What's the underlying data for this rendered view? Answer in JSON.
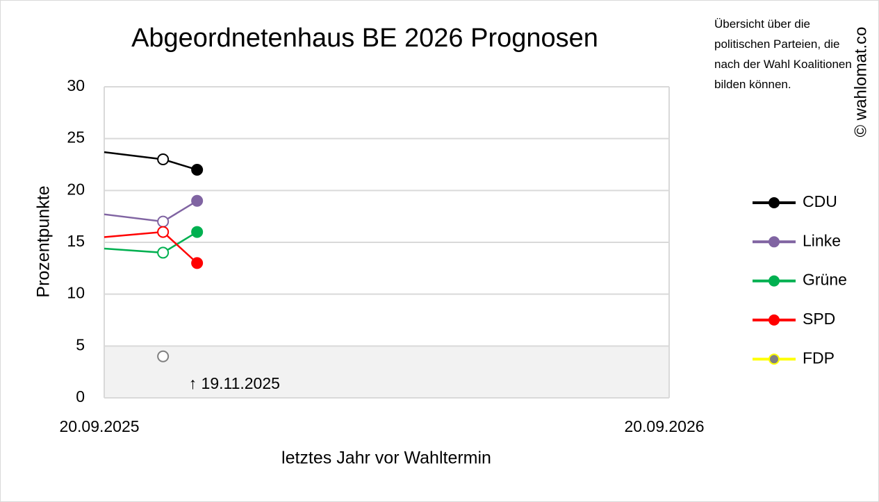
{
  "chart_data": {
    "type": "line",
    "title": "Abgeordnetenhaus BE 2026 Prognosen",
    "x_label": "letztes Jahr vor Wahltermin",
    "y_label": "Prozentpunkte",
    "note": "Übersicht über die politischen Parteien, die nach der Wahl Koalitionen bilden können.",
    "credit": "© wahlomat.co",
    "annotation": "↑ 19.11.2025",
    "x": [
      "20.09.2025",
      "28.10.2025",
      "19.11.2025"
    ],
    "markers": [
      "none",
      "open",
      "filled"
    ],
    "xlim": [
      "20.09.2025",
      "20.09.2026"
    ],
    "xticks": [
      "20.09.2025",
      "20.09.2026"
    ],
    "ylim": [
      0,
      30
    ],
    "yticks": [
      0,
      5,
      10,
      15,
      20,
      25,
      30
    ],
    "shaded_band": [
      0,
      5
    ],
    "grid": true,
    "legend": "right",
    "series": [
      {
        "name": "CDU",
        "color": "#000000",
        "values": [
          23.7,
          23,
          22
        ]
      },
      {
        "name": "Linke",
        "color": "#8064a2",
        "values": [
          17.7,
          17,
          19
        ]
      },
      {
        "name": "Grüne",
        "color": "#00b050",
        "values": [
          14.4,
          14,
          16
        ]
      },
      {
        "name": "SPD",
        "color": "#ff0000",
        "values": [
          15.5,
          16,
          13
        ]
      },
      {
        "name": "FDP",
        "color": "#ffff00",
        "marker_color": "#808080",
        "values": [
          null,
          4,
          null
        ]
      }
    ]
  }
}
